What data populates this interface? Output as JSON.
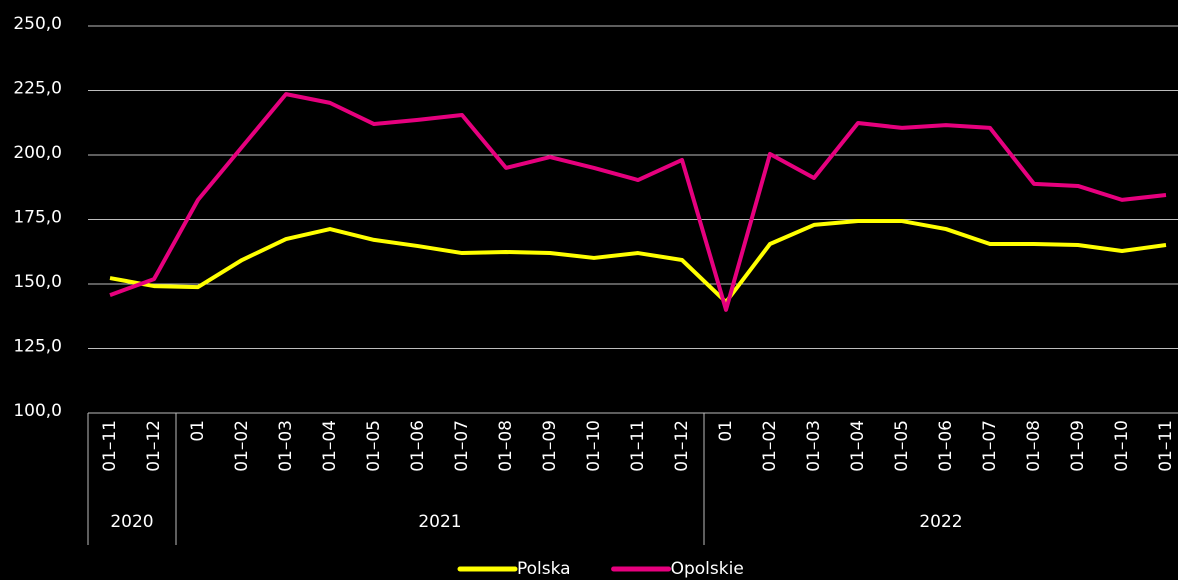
{
  "chart_data": {
    "type": "line",
    "categories": [
      "01–11",
      "01–12",
      "01",
      "01–02",
      "01–03",
      "01–04",
      "01–05",
      "01–06",
      "01–07",
      "01–08",
      "01–09",
      "01–10",
      "01–11",
      "01–12",
      "01",
      "01–02",
      "01–03",
      "01–04",
      "01–05",
      "01–06",
      "01–07",
      "01–08",
      "01–09",
      "01–10",
      "01–11"
    ],
    "category_groups": [
      "2020",
      "2020",
      "2021",
      "2021",
      "2021",
      "2021",
      "2021",
      "2021",
      "2021",
      "2021",
      "2021",
      "2021",
      "2021",
      "2021",
      "2022",
      "2022",
      "2022",
      "2022",
      "2022",
      "2022",
      "2022",
      "2022",
      "2022",
      "2022",
      "2022"
    ],
    "series": [
      {
        "name": "Polska",
        "color": "#ffff00",
        "values": [
          152.3,
          149.2,
          148.8,
          159.3,
          167.4,
          171.3,
          167.1,
          164.7,
          162.0,
          162.4,
          162.0,
          160.1,
          162.0,
          159.3,
          143.0,
          165.5,
          172.9,
          174.4,
          174.4,
          171.3,
          165.5,
          165.5,
          165.1,
          162.8,
          165.1
        ]
      },
      {
        "name": "Opolskie",
        "color": "#e6007e",
        "values": [
          145.7,
          151.9,
          182.6,
          203.1,
          223.6,
          220.2,
          212.0,
          213.6,
          215.5,
          195.0,
          199.2,
          195.0,
          190.3,
          198.1,
          140.0,
          200.4,
          191.1,
          212.4,
          210.5,
          211.6,
          210.5,
          188.8,
          188.0,
          182.6,
          184.5
        ]
      }
    ],
    "ylim": [
      100,
      250
    ],
    "yticks": [
      {
        "value": 100,
        "label": "100,0"
      },
      {
        "value": 125,
        "label": "125,0"
      },
      {
        "value": 150,
        "label": "150,0"
      },
      {
        "value": 175,
        "label": "175,0"
      },
      {
        "value": 200,
        "label": "200,0"
      },
      {
        "value": 225,
        "label": "225,0"
      },
      {
        "value": 250,
        "label": "250,0"
      }
    ],
    "grid": true,
    "legend": "bottom"
  }
}
